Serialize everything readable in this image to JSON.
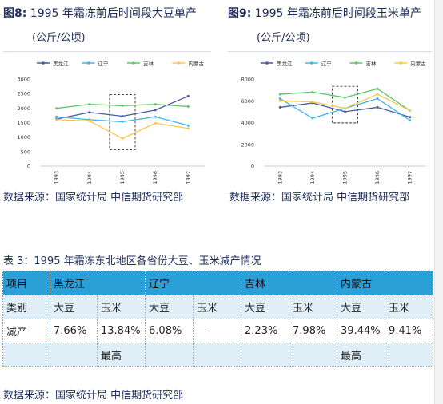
{
  "figures": [
    {
      "title_num": "图8:",
      "title_text": "1995 年霜冻前后时间段大豆单产",
      "unit": "(公斤/公顷)",
      "source": "数据来源：国家统计局  中信期货研究部"
    },
    {
      "title_num": "图9:",
      "title_text": "1995 年霜冻前后时间段玉米单产",
      "unit": "(公斤/公顷)",
      "source": "数据来源：国家统计局  中信期货研究部"
    }
  ],
  "chart_data": [
    {
      "type": "line",
      "title": "1995 年霜冻前后时间段大豆单产",
      "ylabel": "(公斤/公顷)",
      "x": [
        "1993",
        "1994",
        "1995",
        "1996",
        "1997"
      ],
      "ylim": [
        0,
        3000
      ],
      "yticks": [
        0,
        500,
        1000,
        1500,
        2000,
        2500,
        3000
      ],
      "grid": false,
      "legend": "top",
      "highlight_category": "1995",
      "series": [
        {
          "name": "黑龙江",
          "color": "#4a5a9e",
          "values": [
            1620,
            1850,
            1720,
            1930,
            2410
          ]
        },
        {
          "name": "辽宁",
          "color": "#3fb5ea",
          "values": [
            1700,
            1600,
            1530,
            1700,
            1400
          ]
        },
        {
          "name": "吉林",
          "color": "#5fc36e",
          "values": [
            1990,
            2130,
            2080,
            2130,
            2050
          ]
        },
        {
          "name": "内蒙古",
          "color": "#f6c94d",
          "values": [
            1600,
            1560,
            950,
            1480,
            1300
          ]
        }
      ]
    },
    {
      "type": "line",
      "title": "1995 年霜冻前后时间段玉米单产",
      "ylabel": "(公斤/公顷)",
      "x": [
        "1993",
        "1994",
        "1995",
        "1996",
        "1997"
      ],
      "ylim": [
        0,
        8000
      ],
      "yticks": [
        0,
        2000,
        4000,
        6000,
        8000
      ],
      "grid": false,
      "legend": "top",
      "highlight_category": "1995",
      "series": [
        {
          "name": "黑龙江",
          "color": "#4a5a9e",
          "values": [
            5400,
            5800,
            5000,
            5400,
            4500
          ]
        },
        {
          "name": "辽宁",
          "color": "#3fb5ea",
          "values": [
            6200,
            4400,
            5300,
            6200,
            4200
          ]
        },
        {
          "name": "吉林",
          "color": "#5fc36e",
          "values": [
            6600,
            6800,
            6300,
            7100,
            5100
          ]
        },
        {
          "name": "内蒙古",
          "color": "#f6c94d",
          "values": [
            6000,
            5900,
            5300,
            6600,
            5100
          ]
        }
      ]
    }
  ],
  "table": {
    "caption": "表 3：1995 年霜冻东北地区各省份大豆、玉米减产情况",
    "header": [
      "项目",
      "黑龙江",
      "辽宁",
      "吉林",
      "内蒙古"
    ],
    "row_category": [
      "类别",
      "大豆",
      "玉米",
      "大豆",
      "玉米",
      "大豆",
      "玉米",
      "大豆",
      "玉米"
    ],
    "row_reduction": [
      "减产",
      "7.66%",
      "13.84%",
      "6.08%",
      "—",
      "2.23%",
      "7.98%",
      "39.44%",
      "9.41%"
    ],
    "row_extra": [
      "",
      "",
      "最高",
      "",
      "",
      "",
      "",
      "最高",
      ""
    ],
    "source": "数据来源：国家统计局  中信期货研究部"
  },
  "colors": {
    "title_text": "#1f2d5a",
    "table_header": "#2b9fd8",
    "table_band": "#dfeef7",
    "highlight_box": "#333333"
  }
}
